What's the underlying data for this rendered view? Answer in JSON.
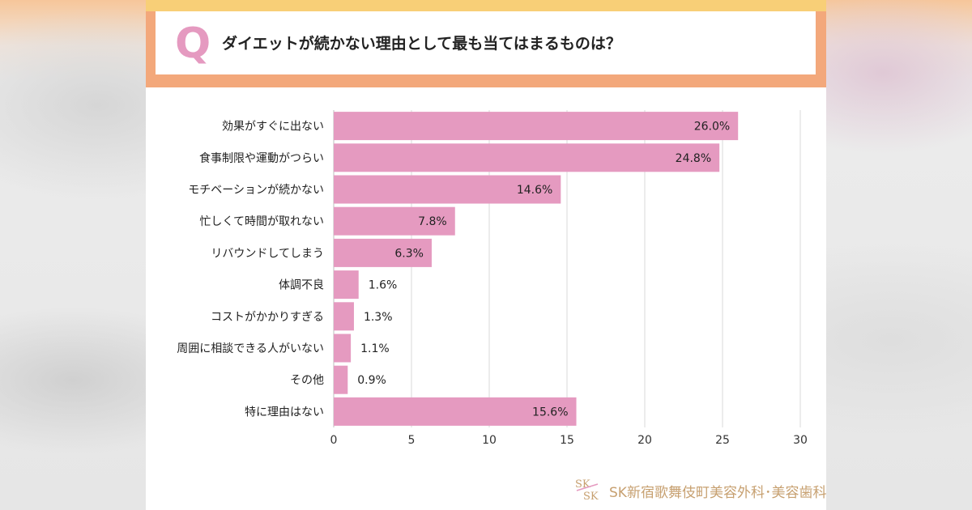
{
  "question": {
    "letter": "Q",
    "text": "ダイエットが続かない理由として最も当てはまるものは？"
  },
  "chart_data": {
    "type": "bar",
    "orientation": "horizontal",
    "categories": [
      "効果がすぐに出ない",
      "食事制限や運動がつらい",
      "モチベーションが続かない",
      "忙しくて時間が取れない",
      "リバウンドしてしまう",
      "体調不良",
      "コストがかかりすぎる",
      "周囲に相談できる人がいない",
      "その他",
      "特に理由はない"
    ],
    "values": [
      26.0,
      24.8,
      14.6,
      7.8,
      6.3,
      1.6,
      1.3,
      1.1,
      0.9,
      15.6
    ],
    "value_labels": [
      "26.0%",
      "24.8%",
      "14.6%",
      "7.8%",
      "6.3%",
      "1.6%",
      "1.3%",
      "1.1%",
      "0.9%",
      "15.6%"
    ],
    "xlim": [
      0,
      30
    ],
    "x_ticks": [
      "0",
      "5",
      "10",
      "15",
      "20",
      "25",
      "30"
    ],
    "grid": true,
    "bar_color": "#e59ac0",
    "title": "",
    "xlabel": "",
    "ylabel": ""
  },
  "logo": {
    "text": "SK新宿歌舞伎町美容外科･美容歯科",
    "mark_letters": "SK",
    "color": "#c7a070"
  }
}
